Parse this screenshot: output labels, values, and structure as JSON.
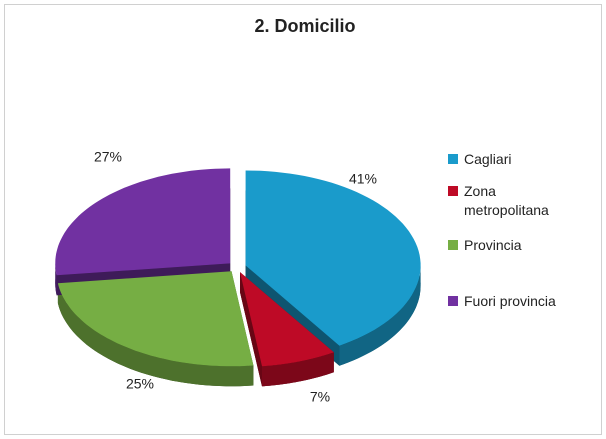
{
  "chart_data": {
    "type": "pie",
    "title": "2. Domicilio",
    "categories": [
      "Cagliari",
      "Zona metropolitana",
      "Provincia",
      "Fuori provincia"
    ],
    "values": [
      41,
      7,
      25,
      27
    ],
    "value_labels": [
      "41%",
      "7%",
      "25%",
      "27%"
    ],
    "colors": [
      "#1a9bcb",
      "#be0a26",
      "#76ae44",
      "#7131a1"
    ],
    "legend": "right"
  }
}
